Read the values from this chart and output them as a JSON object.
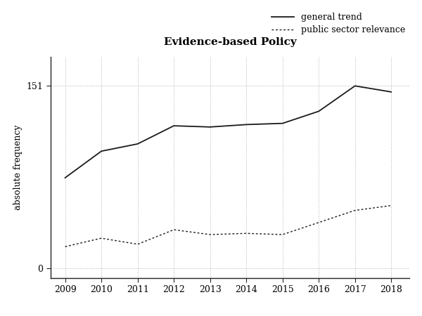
{
  "title": "Evidence-based Policy",
  "ylabel": "absolute frequency",
  "years": [
    2009,
    2010,
    2011,
    2012,
    2013,
    2014,
    2015,
    2016,
    2017,
    2018
  ],
  "general_trend": [
    75,
    97,
    103,
    118,
    117,
    119,
    120,
    130,
    151,
    146
  ],
  "public_sector": [
    18,
    25,
    20,
    32,
    28,
    29,
    28,
    38,
    48,
    52
  ],
  "line_color": "#1a1a1a",
  "yticks": [
    0,
    151
  ],
  "ylim": [
    -8,
    175
  ],
  "xlim": [
    2008.6,
    2018.5
  ],
  "legend_general": "general trend",
  "legend_public": "public sector relevance",
  "title_fontsize": 11,
  "label_fontsize": 9,
  "tick_fontsize": 9
}
